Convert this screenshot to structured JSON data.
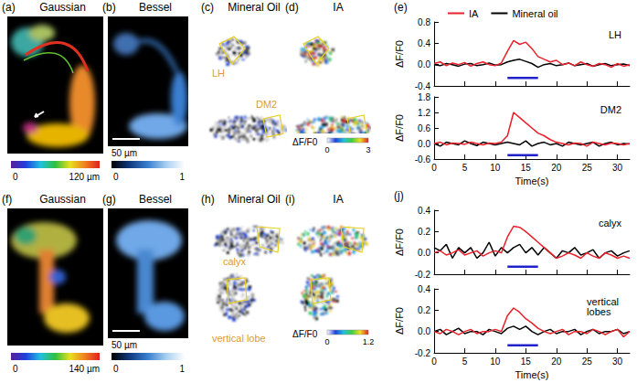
{
  "image_panels": [
    {
      "label": "(a)",
      "title": "Gaussian",
      "colorbar": [
        "0",
        "120 µm"
      ]
    },
    {
      "label": "(b)",
      "title": "Bessel",
      "scale_bar": "50 µm",
      "colorbar": [
        "0",
        "1"
      ]
    },
    {
      "label": "(c)",
      "title": "Mineral Oil",
      "regions": [
        "LH",
        "DM2"
      ]
    },
    {
      "label": "(d)",
      "title": "IA",
      "colorbar_title": "ΔF/F0",
      "colorbar": [
        "0",
        "3"
      ]
    },
    {
      "label": "(f)",
      "title": "Gaussian",
      "colorbar": [
        "0",
        "140 µm"
      ]
    },
    {
      "label": "(g)",
      "title": "Bessel",
      "scale_bar": "50 µm",
      "colorbar": [
        "0",
        "1"
      ]
    },
    {
      "label": "(h)",
      "title": "Mineral Oil",
      "regions": [
        "calyx",
        "vertical lobe"
      ]
    },
    {
      "label": "(i)",
      "title": "IA",
      "colorbar_title": "ΔF/F0",
      "colorbar": [
        "0",
        "1.2"
      ]
    }
  ],
  "chart_data": [
    {
      "type": "line",
      "title": "LH",
      "annotations": [
        "(e)"
      ],
      "ylabel": "ΔF/F0",
      "x": [
        0,
        1,
        2,
        3,
        4,
        5,
        6,
        7,
        8,
        9,
        10,
        11,
        12,
        13,
        14,
        15,
        16,
        17,
        18,
        19,
        20,
        21,
        22,
        23,
        24,
        25,
        26,
        27,
        28,
        29,
        30,
        31,
        32
      ],
      "series": [
        {
          "name": "IA",
          "color": "#e8202a",
          "values": [
            0.02,
            0.05,
            -0.02,
            0.03,
            0.0,
            0.04,
            -0.03,
            0.02,
            0.05,
            0.0,
            -0.02,
            0.03,
            0.25,
            0.45,
            0.38,
            0.42,
            0.3,
            0.15,
            0.1,
            0.05,
            0.08,
            0.0,
            0.03,
            -0.02,
            0.05,
            0.0,
            -0.03,
            0.02,
            0.0,
            -0.05,
            0.02,
            -0.03,
            0.0
          ]
        },
        {
          "name": "Mineral oil",
          "color": "#000000",
          "values": [
            0.0,
            -0.02,
            0.02,
            0.0,
            -0.03,
            0.01,
            0.02,
            -0.02,
            0.0,
            0.03,
            -0.01,
            0.0,
            0.05,
            0.08,
            0.1,
            0.06,
            0.02,
            -0.05,
            0.0,
            0.02,
            -0.02,
            0.0,
            0.03,
            -0.02,
            0.0,
            0.02,
            -0.03,
            0.0,
            0.02,
            -0.02,
            0.0,
            0.01,
            -0.02
          ]
        }
      ],
      "stimulus": {
        "x": [
          12,
          17
        ],
        "y": -0.25,
        "color": "#2222cc"
      },
      "xlim": [
        0,
        32
      ],
      "xticks": [
        0,
        5,
        10,
        15,
        20,
        25,
        30
      ],
      "ylim": [
        -0.4,
        0.8
      ],
      "yticks": [
        -0.4,
        {
          "value": 0,
          "label": "0.0"
        },
        0.4,
        0.8
      ],
      "grid": false,
      "legend": "top",
      "tick_labels": "y"
    },
    {
      "type": "line",
      "title": "DM2",
      "xlabel": "Time(s)",
      "ylabel": "ΔF/F0",
      "x": [
        0,
        1,
        2,
        3,
        4,
        5,
        6,
        7,
        8,
        9,
        10,
        11,
        12,
        13,
        14,
        15,
        16,
        17,
        18,
        19,
        20,
        21,
        22,
        23,
        24,
        25,
        26,
        27,
        28,
        29,
        30,
        31,
        32
      ],
      "series": [
        {
          "name": "IA",
          "color": "#e8202a",
          "values": [
            0.0,
            0.05,
            -0.05,
            0.02,
            0.0,
            -0.03,
            0.05,
            0.0,
            -0.05,
            0.02,
            0.0,
            0.05,
            0.3,
            1.2,
            1.0,
            0.8,
            0.6,
            0.4,
            0.3,
            0.15,
            0.05,
            0.0,
            -0.05,
            0.02,
            0.0,
            -0.1,
            0.05,
            0.0,
            -0.05,
            0.02,
            0.0,
            -0.05,
            0.0
          ]
        },
        {
          "name": "Mineral oil",
          "color": "#000000",
          "values": [
            0.0,
            -0.1,
            0.05,
            0.0,
            -0.05,
            0.1,
            0.0,
            -0.08,
            0.05,
            0.0,
            -0.05,
            0.0,
            0.05,
            0.0,
            -0.05,
            0.1,
            -0.1,
            0.0,
            0.05,
            -0.05,
            0.0,
            -0.1,
            0.05,
            0.0,
            -0.05,
            0.0,
            0.05,
            -0.1,
            0.0,
            0.05,
            -0.05,
            0.0,
            -0.02
          ]
        }
      ],
      "stimulus": {
        "x": [
          12,
          17
        ],
        "y": -0.45,
        "color": "#2222cc"
      },
      "xlim": [
        0,
        32
      ],
      "xticks": [
        0,
        5,
        10,
        15,
        20,
        25,
        30
      ],
      "ylim": [
        -0.6,
        1.8
      ],
      "yticks": [
        -0.6,
        {
          "value": 0,
          "label": "0.0"
        },
        0.6,
        1.2,
        1.8
      ],
      "grid": false
    },
    {
      "type": "line",
      "title": "calyx",
      "annotations": [
        "(j)"
      ],
      "ylabel": "ΔF/F0",
      "x": [
        0,
        1,
        2,
        3,
        4,
        5,
        6,
        7,
        8,
        9,
        10,
        11,
        12,
        13,
        14,
        15,
        16,
        17,
        18,
        19,
        20,
        21,
        22,
        23,
        24,
        25,
        26,
        27,
        28,
        29,
        30,
        31,
        32
      ],
      "series": [
        {
          "name": "IA",
          "color": "#e8202a",
          "values": [
            0.0,
            0.02,
            -0.02,
            0.0,
            0.03,
            -0.02,
            0.0,
            0.02,
            -0.03,
            0.0,
            0.02,
            0.0,
            0.15,
            0.25,
            0.24,
            0.2,
            0.15,
            0.1,
            0.05,
            0.0,
            -0.05,
            -0.03,
            0.0,
            -0.02,
            -0.05,
            0.0,
            -0.03,
            -0.05,
            0.0,
            -0.02,
            -0.05,
            -0.03,
            -0.05
          ]
        },
        {
          "name": "Mineral oil",
          "color": "#000000",
          "values": [
            0.05,
            0.02,
            0.08,
            -0.05,
            0.05,
            0.0,
            0.05,
            -0.05,
            0.0,
            0.1,
            -0.03,
            0.05,
            0.0,
            0.05,
            0.08,
            0.0,
            0.05,
            -0.02,
            0.05,
            0.0,
            -0.05,
            0.02,
            0.0,
            0.05,
            -0.02,
            0.0,
            0.03,
            -0.05,
            0.0,
            0.02,
            -0.03,
            0.0,
            0.02
          ]
        }
      ],
      "stimulus": {
        "x": [
          12,
          17
        ],
        "y": -0.13,
        "color": "#2222cc"
      },
      "xlim": [
        0,
        32
      ],
      "xticks": [
        0,
        5,
        10,
        15,
        20,
        25,
        30
      ],
      "ylim": [
        -0.2,
        0.4
      ],
      "yticks": [
        -0.2,
        {
          "value": 0,
          "label": "0.0"
        },
        0.2,
        0.4
      ],
      "grid": false,
      "tick_labels": "y"
    },
    {
      "type": "line",
      "title": "vertical lobes",
      "xlabel": "Time(s)",
      "ylabel": "ΔF/F0",
      "x": [
        0,
        1,
        2,
        3,
        4,
        5,
        6,
        7,
        8,
        9,
        10,
        11,
        12,
        13,
        14,
        15,
        16,
        17,
        18,
        19,
        20,
        21,
        22,
        23,
        24,
        25,
        26,
        27,
        28,
        29,
        30,
        31,
        32
      ],
      "series": [
        {
          "name": "IA",
          "color": "#e8202a",
          "values": [
            0.0,
            -0.02,
            0.02,
            0.0,
            -0.03,
            0.0,
            0.02,
            -0.02,
            0.0,
            0.0,
            0.02,
            0.0,
            0.15,
            0.22,
            0.18,
            0.12,
            0.08,
            0.03,
            0.0,
            -0.02,
            0.0,
            0.02,
            -0.03,
            0.0,
            0.0,
            -0.02,
            0.02,
            0.0,
            -0.03,
            0.0,
            0.02,
            -0.05,
            0.0
          ]
        },
        {
          "name": "Mineral oil",
          "color": "#000000",
          "values": [
            0.0,
            0.02,
            -0.03,
            0.0,
            0.03,
            -0.02,
            0.0,
            0.0,
            -0.03,
            0.02,
            0.0,
            -0.02,
            0.03,
            0.05,
            0.02,
            0.05,
            0.0,
            -0.03,
            0.0,
            0.02,
            -0.02,
            0.0,
            0.0,
            0.02,
            -0.03,
            0.0,
            0.02,
            -0.02,
            0.0,
            0.0,
            0.02,
            -0.02,
            0.0
          ]
        }
      ],
      "stimulus": {
        "x": [
          12,
          17
        ],
        "y": -0.13,
        "color": "#2222cc"
      },
      "xlim": [
        0,
        32
      ],
      "xticks": [
        0,
        5,
        10,
        15,
        20,
        25,
        30
      ],
      "ylim": [
        -0.2,
        0.4
      ],
      "yticks": [
        -0.2,
        {
          "value": 0,
          "label": "0.0"
        },
        0.2,
        0.4
      ],
      "grid": false
    }
  ]
}
